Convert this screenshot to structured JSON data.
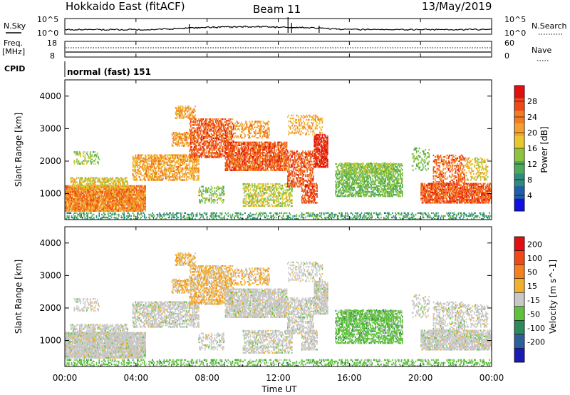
{
  "header": {
    "radar": "Hokkaido East (fitACF)",
    "beam": "Beam 11",
    "date": "13/May/2019"
  },
  "noise_panel": {
    "left_label": "N.Sky",
    "right_label": "N.Search",
    "left_ticks": [
      "10^5",
      "10^0"
    ],
    "right_ticks": [
      "10^5",
      "10^0"
    ]
  },
  "freq_panel": {
    "left_label_top": "Freq.",
    "left_label_bottom": "[MHz]",
    "left_ticks": [
      "18",
      "8"
    ],
    "right_label": "Nave",
    "right_ticks": [
      "60",
      "0"
    ]
  },
  "cpid_panel": {
    "label": "CPID",
    "value": "normal (fast) 151"
  },
  "chart_data": [
    {
      "type": "heatmap",
      "parameter": "Power",
      "ylabel": "Slant Range [km]",
      "ylim": [
        200,
        4500
      ],
      "yticks": [
        "1000",
        "2000",
        "3000",
        "4000"
      ],
      "xlim": [
        "00:00",
        "24:00"
      ],
      "colorbar_label": "Power [dB]",
      "colorbar_ticks": [
        "4",
        "8",
        "12",
        "16",
        "20",
        "24",
        "28"
      ],
      "colorbar_colors": [
        "#1010e0",
        "#1f5fa8",
        "#2f8a80",
        "#4caa5c",
        "#8ec43c",
        "#e8c82e",
        "#f4a030",
        "#f47c20",
        "#ec4a18",
        "#e01010"
      ]
    },
    {
      "type": "heatmap",
      "parameter": "Velocity",
      "ylabel": "Slant Range [km]",
      "ylim": [
        200,
        4500
      ],
      "yticks": [
        "1000",
        "2000",
        "3000",
        "4000"
      ],
      "xlim": [
        "00:00",
        "24:00"
      ],
      "colorbar_label": "Velocity [m s^-1]",
      "colorbar_ticks": [
        "200",
        "100",
        "50",
        "15",
        "-15",
        "-50",
        "-100",
        "-200"
      ],
      "colorbar_colors": [
        "#1a1ab4",
        "#2e5f9c",
        "#2e8a5a",
        "#5fc23a",
        "#c8c8c8",
        "#f0b030",
        "#f48020",
        "#ee4a18",
        "#e01010"
      ]
    }
  ],
  "x_axis": {
    "ticks": [
      "00:00",
      "04:00",
      "08:00",
      "12:00",
      "16:00",
      "20:00",
      "00:00"
    ],
    "label": "Time UT"
  }
}
